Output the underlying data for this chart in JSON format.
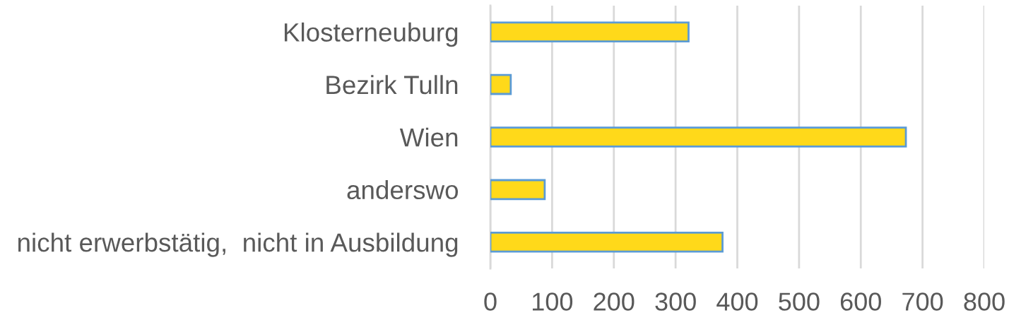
{
  "chart_data": {
    "type": "bar",
    "orientation": "horizontal",
    "categories": [
      "Klosterneuburg",
      "Bezirk Tulln",
      "Wien",
      "anderswo",
      "nicht erwerbstätig,  nicht in Ausbildung"
    ],
    "values": [
      321,
      33,
      673,
      88,
      376
    ],
    "color": "#ffd91a",
    "xlim": [
      0,
      800
    ],
    "xticks": [
      0,
      100,
      200,
      300,
      400,
      500,
      600,
      700,
      800
    ],
    "grid": "x"
  }
}
